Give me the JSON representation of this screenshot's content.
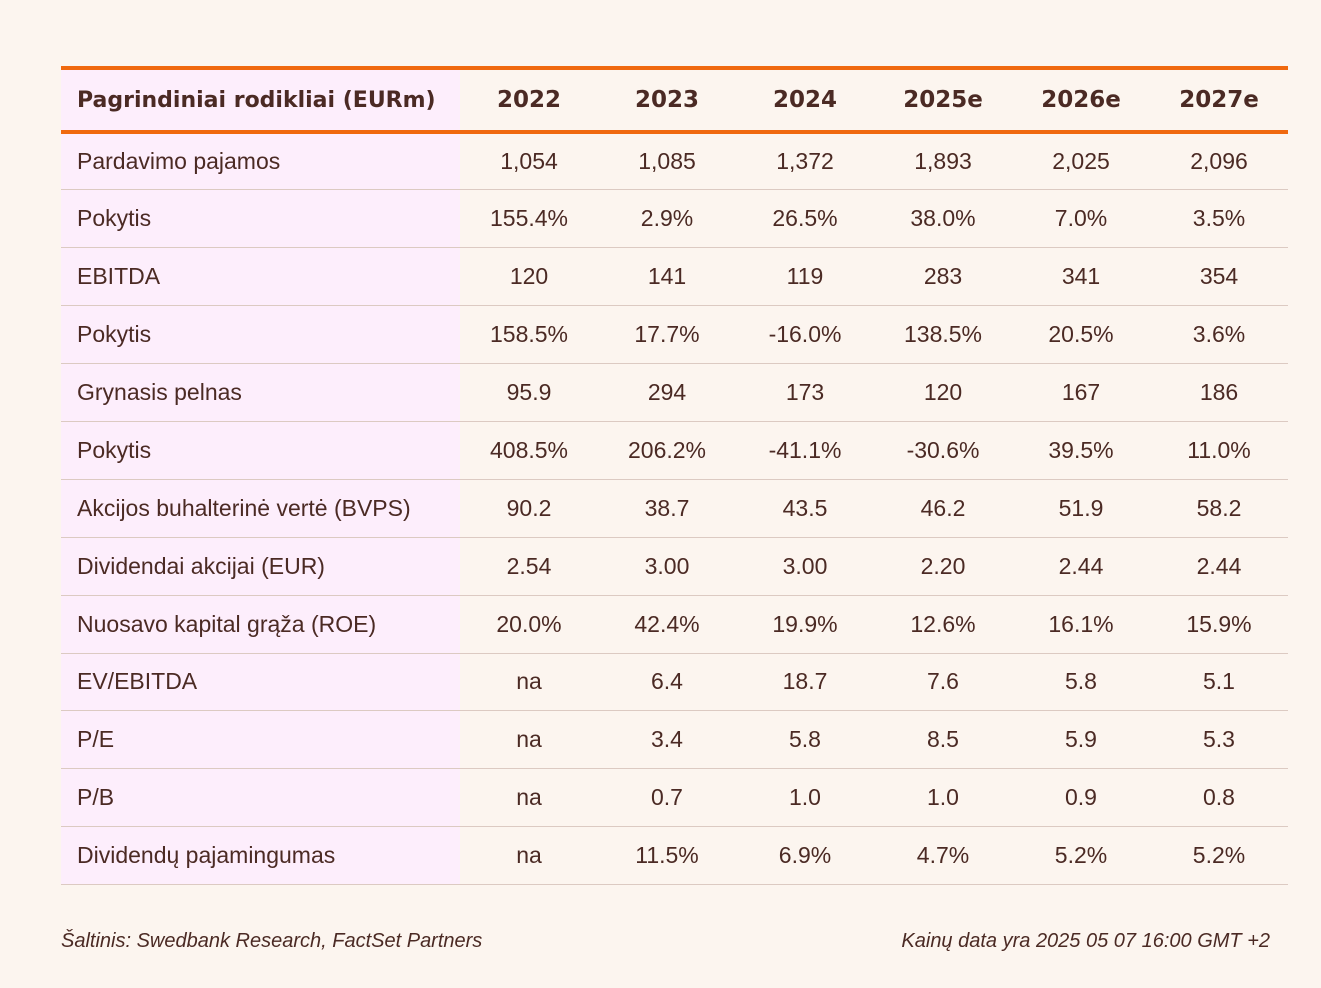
{
  "table": {
    "header": [
      "Pagrindiniai rodikliai (EURm)",
      "2022",
      "2023",
      "2024",
      "2025e",
      "2026e",
      "2027e"
    ],
    "rows": [
      [
        "Pardavimo pajamos",
        "1,054",
        "1,085",
        "1,372",
        "1,893",
        "2,025",
        "2,096"
      ],
      [
        "Pokytis",
        "155.4%",
        "2.9%",
        "26.5%",
        "38.0%",
        "7.0%",
        "3.5%"
      ],
      [
        "EBITDA",
        "120",
        "141",
        "119",
        "283",
        "341",
        "354"
      ],
      [
        "Pokytis",
        "158.5%",
        "17.7%",
        "-16.0%",
        "138.5%",
        "20.5%",
        "3.6%"
      ],
      [
        "Grynasis pelnas",
        "95.9",
        "294",
        "173",
        "120",
        "167",
        "186"
      ],
      [
        "Pokytis",
        "408.5%",
        "206.2%",
        "-41.1%",
        "-30.6%",
        "39.5%",
        "11.0%"
      ],
      [
        "Akcijos buhalterinė vertė (BVPS)",
        "90.2",
        "38.7",
        "43.5",
        "46.2",
        "51.9",
        "58.2"
      ],
      [
        "Dividendai akcijai (EUR)",
        "2.54",
        "3.00",
        "3.00",
        "2.20",
        "2.44",
        "2.44"
      ],
      [
        "Nuosavo kapital grąža (ROE)",
        "20.0%",
        "42.4%",
        "19.9%",
        "12.6%",
        "16.1%",
        "15.9%"
      ],
      [
        "EV/EBITDA",
        "na",
        "6.4",
        "18.7",
        "7.6",
        "5.8",
        "5.1"
      ],
      [
        "P/E",
        "na",
        "3.4",
        "5.8",
        "8.5",
        "5.9",
        "5.3"
      ],
      [
        "P/B",
        "na",
        "0.7",
        "1.0",
        "1.0",
        "0.9",
        "0.8"
      ],
      [
        "Dividendų pajamingumas",
        "na",
        "11.5%",
        "6.9%",
        "4.7%",
        "5.2%",
        "5.2%"
      ]
    ]
  },
  "footer": {
    "source": "Šaltinis: Swedbank Research, FactSet Partners",
    "price_date": "Kainų data yra 2025 05 07 16:00 GMT +2"
  },
  "colors": {
    "accent": "#f0690f",
    "label_column_bg": "#fdeefc",
    "page_bg": "#fcf5ef",
    "text": "#4b2a24"
  }
}
